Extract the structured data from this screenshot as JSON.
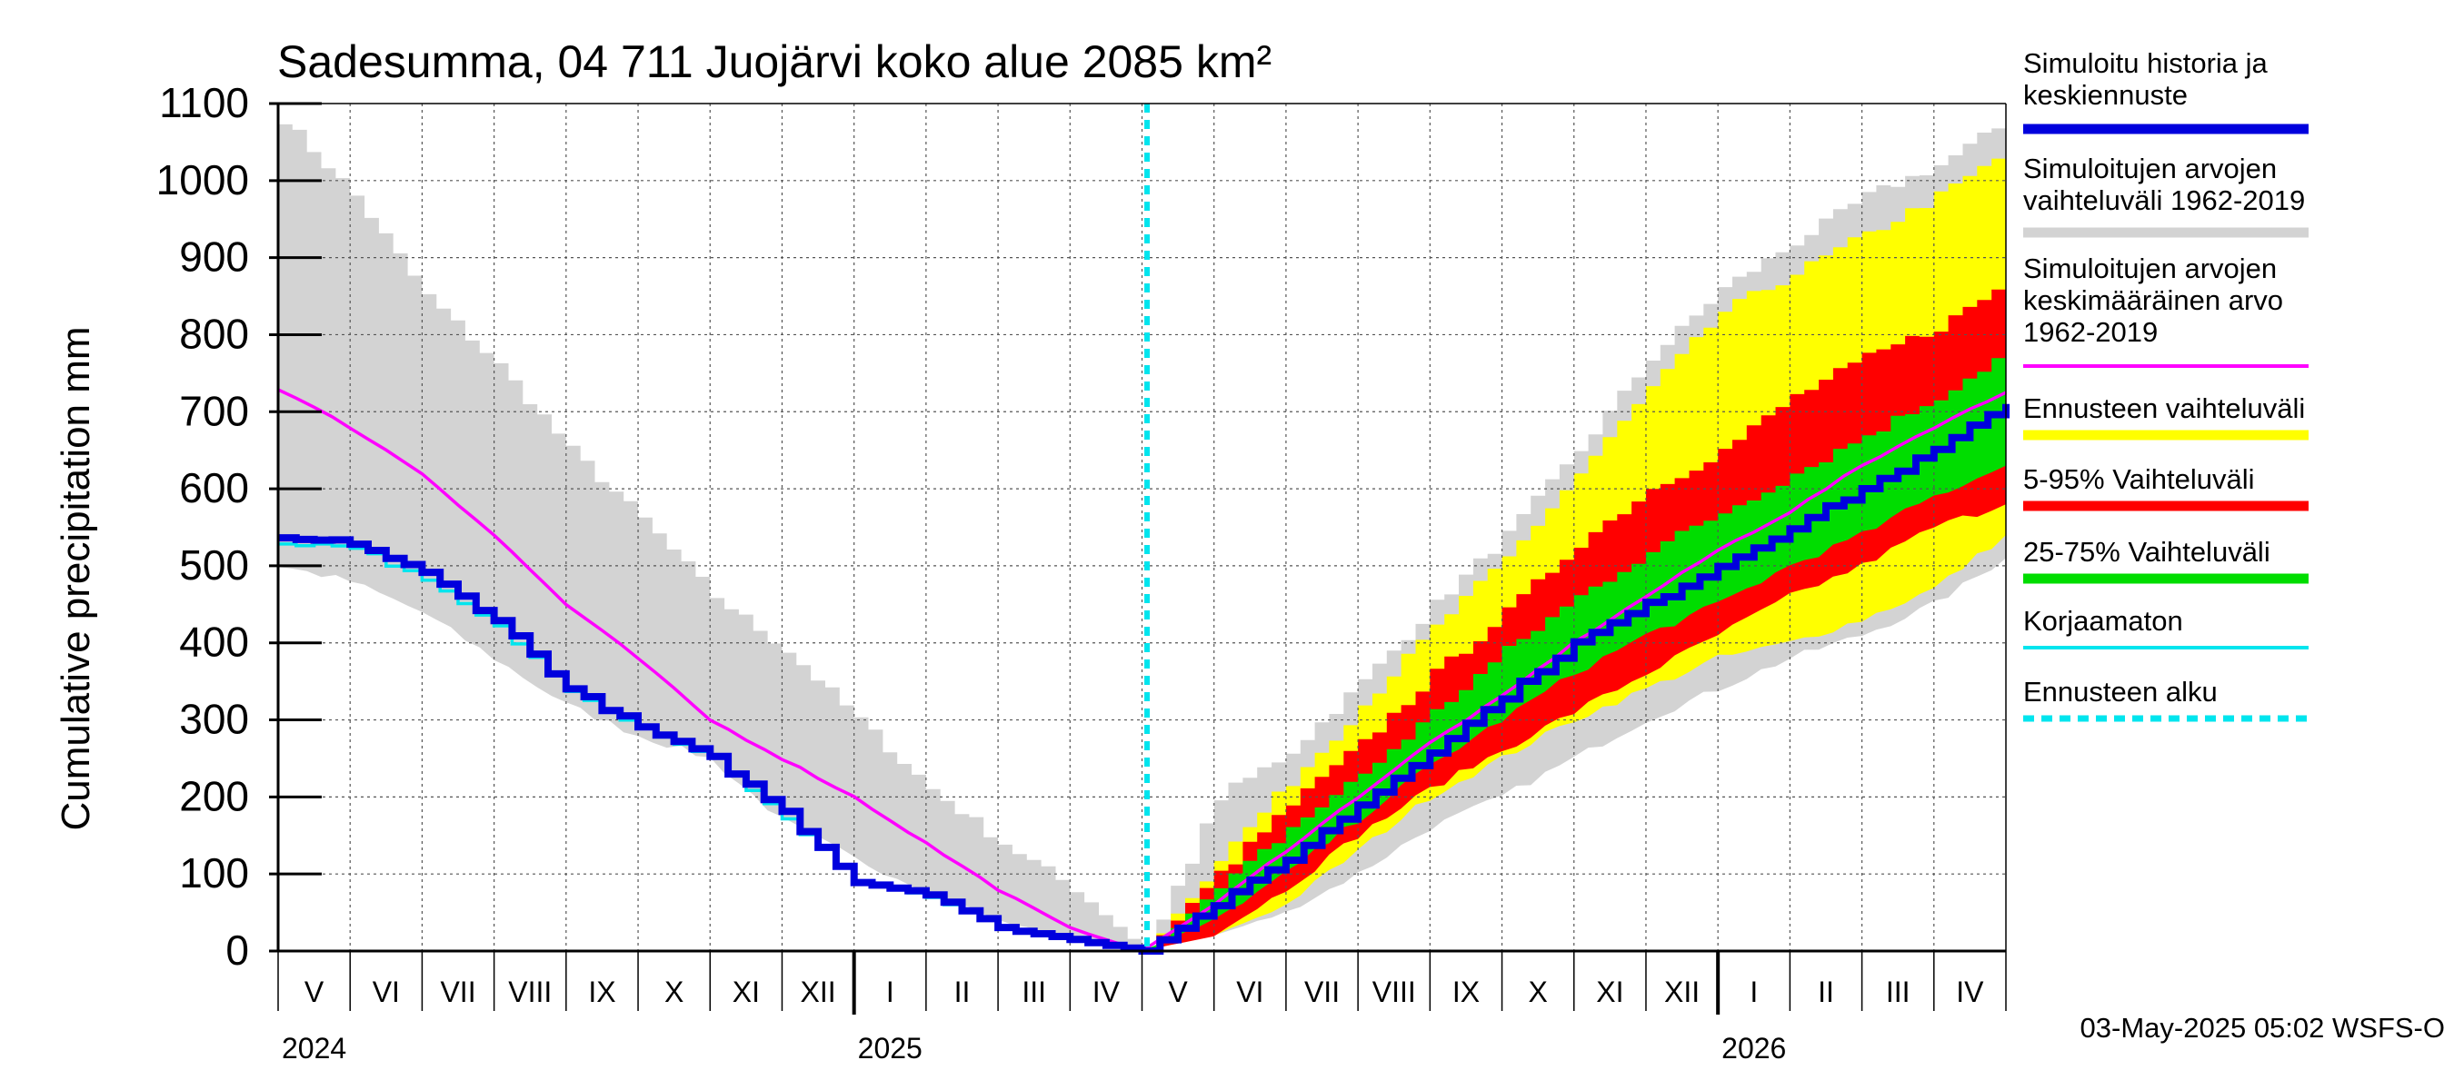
{
  "chart_data": {
    "type": "area",
    "title": "Sadesumma, 04 711 Juojärvi koko alue 2085 km²",
    "ylabel": "Cumulative precipitation   mm",
    "ylim": [
      0,
      1100
    ],
    "y_ticks": [
      "0",
      "100",
      "200",
      "300",
      "400",
      "500",
      "600",
      "700",
      "800",
      "900",
      "1000",
      "1100"
    ],
    "x_range": [
      "2024-05-01",
      "2026-05-01"
    ],
    "forecast_start": "2025-05-03",
    "months": [
      "V",
      "VI",
      "VII",
      "VIII",
      "IX",
      "X",
      "XI",
      "XII",
      "I",
      "II",
      "III",
      "IV",
      "V",
      "VI",
      "VII",
      "VIII",
      "IX",
      "X",
      "XI",
      "XII",
      "I",
      "II",
      "III",
      "IV"
    ],
    "years": [
      "2024",
      "2025",
      "2026"
    ],
    "series": [
      {
        "name": "Simuloitujen arvojen vaihteluväli 1962-2019",
        "kind": "band",
        "x_months": [
          0,
          1,
          2,
          3,
          4,
          5,
          6,
          7,
          8,
          9,
          10,
          11,
          12
        ],
        "upper": [
          1080,
          980,
          850,
          760,
          650,
          560,
          460,
          390,
          300,
          210,
          140,
          80,
          0
        ],
        "lower": [
          500,
          480,
          440,
          380,
          320,
          280,
          250,
          170,
          120,
          80,
          40,
          15,
          0
        ]
      },
      {
        "name": "Simuloitujen arvojen vaihteluväli 1962-2019",
        "kind": "band",
        "x_months": [
          12,
          13,
          14,
          15,
          16,
          17,
          18,
          19,
          20,
          21,
          22,
          23,
          24
        ],
        "upper": [
          0,
          200,
          260,
          350,
          450,
          540,
          650,
          770,
          860,
          920,
          980,
          1020,
          1080
        ],
        "lower": [
          0,
          20,
          50,
          100,
          160,
          200,
          250,
          300,
          340,
          380,
          410,
          450,
          510
        ]
      },
      {
        "name": "Ennusteen vaihteluväli",
        "kind": "band",
        "x_months": [
          12,
          13,
          14,
          15,
          16,
          17,
          18,
          19,
          20,
          21,
          22,
          23,
          24
        ],
        "upper": [
          0,
          120,
          220,
          320,
          420,
          510,
          620,
          730,
          830,
          880,
          930,
          980,
          1040
        ],
        "lower": [
          0,
          20,
          60,
          130,
          200,
          250,
          300,
          340,
          380,
          400,
          430,
          470,
          540
        ]
      },
      {
        "name": "5-95% Vaihteluväli",
        "kind": "band",
        "x_months": [
          12,
          13,
          14,
          15,
          16,
          17,
          18,
          19,
          20,
          21,
          22,
          23,
          24
        ],
        "upper": [
          0,
          100,
          190,
          270,
          360,
          440,
          530,
          600,
          650,
          720,
          770,
          810,
          870
        ],
        "lower": [
          0,
          20,
          80,
          150,
          210,
          260,
          310,
          360,
          410,
          460,
          500,
          550,
          580
        ]
      },
      {
        "name": "25-75% Vaihteluväli",
        "kind": "band",
        "x_months": [
          12,
          13,
          14,
          15,
          16,
          17,
          18,
          19,
          20,
          21,
          22,
          23,
          24
        ],
        "upper": [
          0,
          80,
          160,
          230,
          310,
          390,
          460,
          520,
          570,
          620,
          670,
          720,
          780
        ],
        "lower": [
          0,
          40,
          100,
          170,
          240,
          300,
          360,
          410,
          450,
          500,
          540,
          590,
          630
        ]
      },
      {
        "name": "Simuloitujen arvojen keskimääräinen arvo 1962-2019",
        "kind": "line",
        "x_months": [
          0,
          1,
          2,
          3,
          4,
          5,
          6,
          7,
          8,
          9,
          10,
          11,
          12,
          13,
          14,
          15,
          16,
          17,
          18,
          19,
          20,
          21,
          22,
          23,
          24
        ],
        "values": [
          730,
          680,
          620,
          540,
          450,
          380,
          300,
          250,
          200,
          140,
          80,
          30,
          0,
          60,
          130,
          200,
          270,
          330,
          400,
          460,
          520,
          570,
          630,
          680,
          725
        ]
      },
      {
        "name": "Korjaamaton",
        "kind": "line",
        "x_months": [
          0,
          1,
          2,
          3,
          4,
          5,
          6,
          7,
          8,
          9,
          10,
          11,
          12
        ],
        "values": [
          530,
          525,
          480,
          420,
          340,
          290,
          250,
          170,
          90,
          70,
          30,
          15,
          0
        ]
      },
      {
        "name": "Simuloitu historia ja keskiennuste",
        "kind": "line",
        "x_months": [
          0,
          1,
          2,
          3,
          4,
          5,
          6,
          7,
          8,
          9,
          10,
          11,
          12,
          13,
          14,
          15,
          16,
          17,
          18,
          19,
          20,
          21,
          22,
          23,
          24
        ],
        "values": [
          535,
          530,
          490,
          430,
          340,
          290,
          250,
          180,
          90,
          75,
          30,
          15,
          0,
          60,
          120,
          190,
          260,
          330,
          400,
          450,
          500,
          550,
          600,
          650,
          710
        ]
      },
      {
        "name": "Ennusteen alku",
        "kind": "vline",
        "x_months": [
          12.07
        ]
      }
    ]
  },
  "legend": {
    "items": [
      {
        "label_lines": [
          "Simuloitu historia ja",
          "keskiennuste"
        ],
        "color": "#0000dd",
        "style": "thick"
      },
      {
        "label_lines": [
          "Simuloitujen arvojen",
          "vaihteluväli 1962-2019"
        ],
        "color": "#d3d3d3",
        "style": "thick"
      },
      {
        "label_lines": [
          "Simuloitujen arvojen",
          "keskimääräinen arvo",
          "   1962-2019"
        ],
        "color": "#ff00ff",
        "style": "thin"
      },
      {
        "label_lines": [
          "Ennusteen vaihteluväli"
        ],
        "color": "#ffff00",
        "style": "thick"
      },
      {
        "label_lines": [
          "5-95% Vaihteluväli"
        ],
        "color": "#ff0000",
        "style": "thick"
      },
      {
        "label_lines": [
          "25-75% Vaihteluväli"
        ],
        "color": "#00dd00",
        "style": "thick"
      },
      {
        "label_lines": [
          "Korjaamaton"
        ],
        "color": "#00e5ee",
        "style": "thin"
      },
      {
        "label_lines": [
          "Ennusteen alku"
        ],
        "color": "#00e5ee",
        "style": "dashed"
      }
    ]
  },
  "footer": {
    "timestamp": "03-May-2025 05:02 WSFS-O"
  }
}
